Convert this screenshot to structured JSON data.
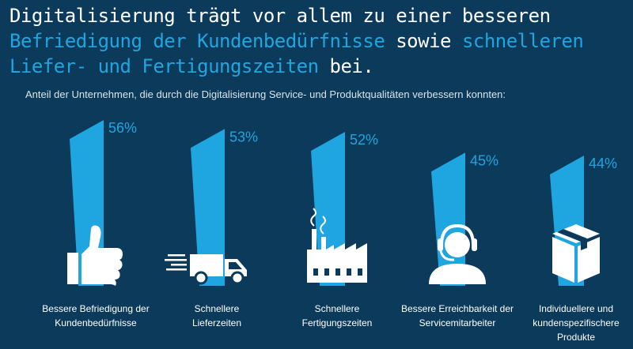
{
  "header": {
    "title_part1": "Digitalisierung trägt vor allem zu einer besseren",
    "title_hl1": "Befriedigung der Kundenbedürfnisse",
    "title_mid": "sowie",
    "title_hl2": "schnelleren Liefer- und Fertigungszeiten",
    "title_end": "bei.",
    "subtitle": "Anteil der Unternehmen, die durch die Digitalisierung Service- und Produktqualitäten verbessern konnten:"
  },
  "colors": {
    "background": "#0b3a5b",
    "accent": "#1fa5df",
    "icon": "#ffffff"
  },
  "chart_data": {
    "type": "bar",
    "title": "Anteil der Unternehmen, die durch die Digitalisierung Service- und Produktqualitäten verbessern konnten",
    "categories": [
      "Bessere Befriedigung der Kundenbedürfnisse",
      "Schnellere Lieferzeiten",
      "Schnellere Fertigungszeiten",
      "Bessere Erreichbarkeit der Servicemitarbeiter",
      "Individuellere und kundenspezifischere Produkte"
    ],
    "category_lines": [
      [
        "Bessere Befriedigung der",
        "Kundenbedürfnisse"
      ],
      [
        "Schnellere",
        "Lieferzeiten"
      ],
      [
        "Schnellere",
        "Fertigungszeiten"
      ],
      [
        "Bessere Erreichbarkeit der",
        "Servicemitarbeiter"
      ],
      [
        "Individuellere und",
        "kundenspezifischere",
        "Produkte"
      ]
    ],
    "values": [
      56,
      53,
      52,
      45,
      44
    ],
    "labels": [
      "56%",
      "53%",
      "52%",
      "45%",
      "44%"
    ],
    "icons": [
      "thumbs-up-icon",
      "truck-icon",
      "factory-icon",
      "headset-icon",
      "package-icon"
    ],
    "unit": "%",
    "ylim": [
      0,
      60
    ]
  }
}
